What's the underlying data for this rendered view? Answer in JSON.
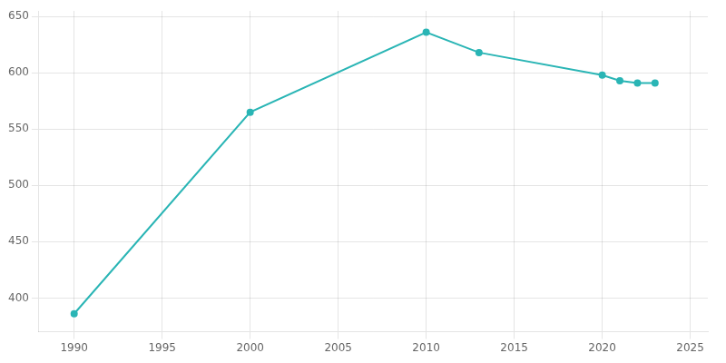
{
  "chart_data": {
    "type": "line",
    "x": [
      1990,
      2000,
      2010,
      2013,
      2020,
      2021,
      2022,
      2023
    ],
    "values": [
      386,
      565,
      636,
      618,
      598,
      593,
      591,
      591
    ],
    "color": "#2ab5b5",
    "marker": "circle",
    "xlim": [
      1988,
      2026
    ],
    "ylim": [
      370,
      655
    ],
    "xticks": [
      1990,
      1995,
      2000,
      2005,
      2010,
      2015,
      2020,
      2025
    ],
    "yticks": [
      400,
      450,
      500,
      550,
      600,
      650
    ],
    "grid": true
  }
}
